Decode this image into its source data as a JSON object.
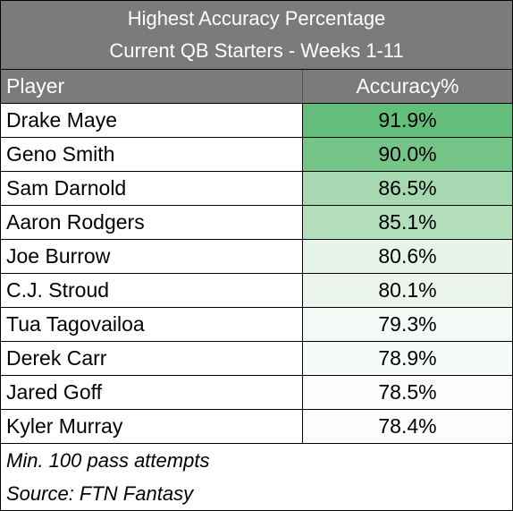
{
  "chart_data": {
    "type": "table",
    "title": "Highest Accuracy Percentage",
    "subtitle": "Current QB Starters - Weeks 1-11",
    "columns": [
      "Player",
      "Accuracy%"
    ],
    "rows": [
      {
        "player": "Drake Maye",
        "accuracy": "91.9%",
        "value": 91.9,
        "color": "#63be7b"
      },
      {
        "player": "Geno Smith",
        "accuracy": "90.0%",
        "value": 90.0,
        "color": "#75c588"
      },
      {
        "player": "Sam Darnold",
        "accuracy": "86.5%",
        "value": 86.5,
        "color": "#a6d9b1"
      },
      {
        "player": "Aaron Rodgers",
        "accuracy": "85.1%",
        "value": 85.1,
        "color": "#b2deba"
      },
      {
        "player": "Joe Burrow",
        "accuracy": "80.6%",
        "value": 80.6,
        "color": "#e6f3e9"
      },
      {
        "player": "C.J. Stroud",
        "accuracy": "80.1%",
        "value": 80.1,
        "color": "#ebf5ed"
      },
      {
        "player": "Tua Tagovailoa",
        "accuracy": "79.3%",
        "value": 79.3,
        "color": "#f4f9f5"
      },
      {
        "player": "Derek Carr",
        "accuracy": "78.9%",
        "value": 78.9,
        "color": "#f7fbf8"
      },
      {
        "player": "Jared Goff",
        "accuracy": "78.5%",
        "value": 78.5,
        "color": "#fbfdfb"
      },
      {
        "player": "Kyler Murray",
        "accuracy": "78.4%",
        "value": 78.4,
        "color": "#fcfdfc"
      }
    ],
    "notes": [
      "Min. 100 pass attempts",
      "Source:  FTN Fantasy"
    ]
  }
}
